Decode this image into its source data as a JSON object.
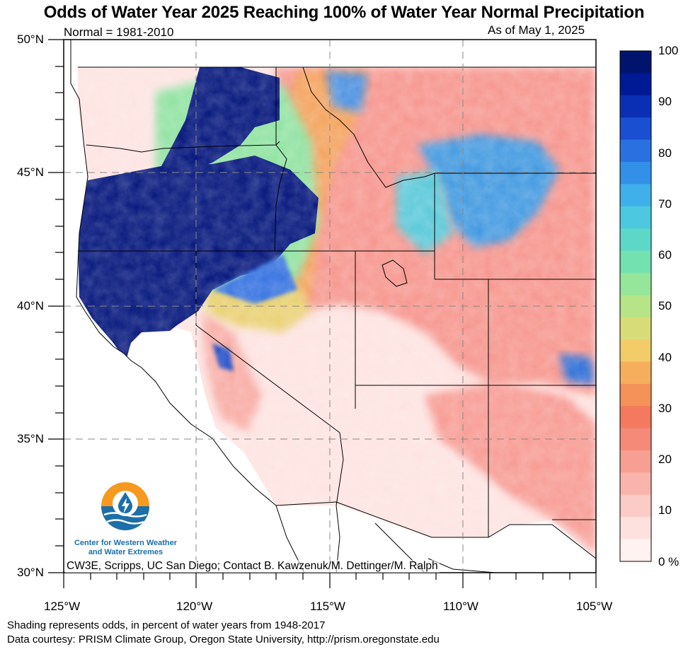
{
  "title": "Odds of Water Year 2025 Reaching 100% of Water Year Normal Precipitation",
  "normal_label": "Normal = 1981-2010",
  "as_of_label": "As of May 1, 2025",
  "credit_line": "CW3E, Scripps, UC San Diego; Contact B. Kawzenuk/M. Dettinger/M. Ralph",
  "footer": {
    "line1": "Shading represents odds, in percent of water years from 1948-2017",
    "line2": "Data courtesy: PRISM Climate Group, Oregon State University, http://prism.oregonstate.edu"
  },
  "logo": {
    "line1": "Center for Western Weather",
    "line2": "and Water Extremes",
    "icon": "water-drop-lightning-icon"
  },
  "lat_labels": [
    "50°N",
    "45°N",
    "40°N",
    "35°N",
    "30°N"
  ],
  "lon_labels": [
    "125°W",
    "120°W",
    "115°W",
    "110°W",
    "105°W"
  ],
  "colorbar": {
    "labels": [
      "100",
      "90",
      "80",
      "70",
      "60",
      "50",
      "40",
      "30",
      "20",
      "10",
      "0 %"
    ],
    "colors_high_to_low": [
      "#00146e",
      "#001a96",
      "#0a2fb4",
      "#1a4fd2",
      "#2a70e0",
      "#3390e8",
      "#3fb0ea",
      "#4cc8e0",
      "#5dd8c8",
      "#74e2b0",
      "#95e69a",
      "#b6e486",
      "#d8dc78",
      "#f2cc68",
      "#f6ae5c",
      "#f5925a",
      "#f37a5e",
      "#f58a78",
      "#f79f92",
      "#f9b5ad",
      "#fbcbc7",
      "#fde1df",
      "#fff2f1"
    ]
  },
  "map_data": {
    "extent_lon": [
      -125,
      -105
    ],
    "extent_lat": [
      30,
      50
    ],
    "variable": "odds of reaching 100% of normal water year precipitation",
    "units": "percent"
  }
}
